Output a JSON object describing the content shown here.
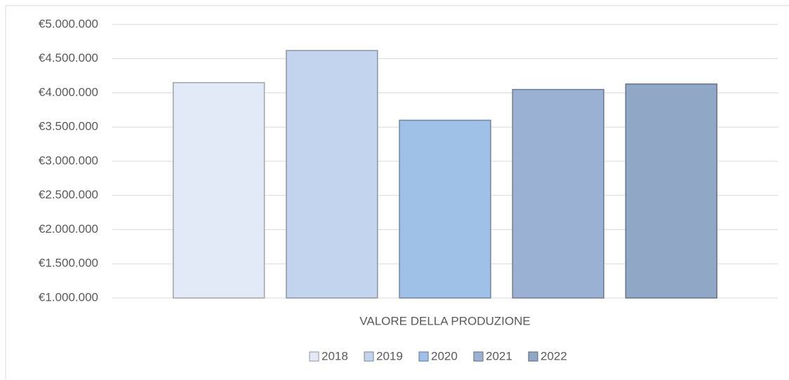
{
  "chart_data": {
    "type": "bar",
    "categories": [
      "VALORE DELLA PRODUZIONE"
    ],
    "series": [
      {
        "name": "2018",
        "color": "#e1eaf6",
        "values": [
          4150000
        ]
      },
      {
        "name": "2019",
        "color": "#c3d5ee",
        "values": [
          4620000
        ]
      },
      {
        "name": "2020",
        "color": "#9ec0e7",
        "values": [
          3600000
        ]
      },
      {
        "name": "2021",
        "color": "#9ab1d3",
        "values": [
          4050000
        ]
      },
      {
        "name": "2022",
        "color": "#90a7c6",
        "values": [
          4130000
        ]
      }
    ],
    "ylim": [
      1000000,
      5000000
    ],
    "yticks": [
      {
        "value": 1000000,
        "label": "€1.000.000"
      },
      {
        "value": 1500000,
        "label": "€1.500.000"
      },
      {
        "value": 2000000,
        "label": "€2.000.000"
      },
      {
        "value": 2500000,
        "label": "€2.500.000"
      },
      {
        "value": 3000000,
        "label": "€3.000.000"
      },
      {
        "value": 3500000,
        "label": "€3.500.000"
      },
      {
        "value": 4000000,
        "label": "€4.000.000"
      },
      {
        "value": 4500000,
        "label": "€4.500.000"
      },
      {
        "value": 5000000,
        "label": "€5.000.000"
      }
    ],
    "grid": true,
    "legend": "bottom"
  }
}
